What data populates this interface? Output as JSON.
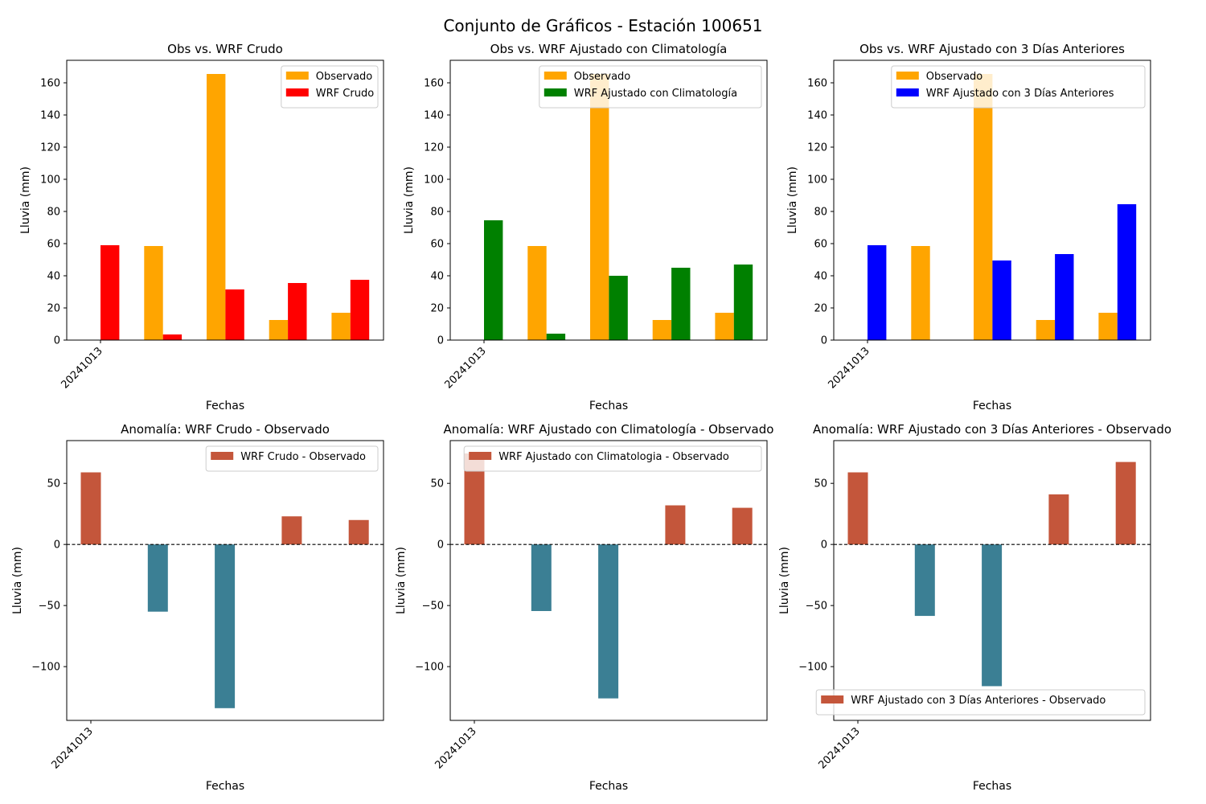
{
  "figure": {
    "title": "Conjunto de Gráficos - Estación 100651"
  },
  "colors": {
    "observed": "#FFA500",
    "wrf_raw": "#FF0000",
    "wrf_clim": "#008000",
    "wrf_3days": "#0000FF",
    "anomaly_positive": "#C4563B",
    "anomaly_negative": "#3B7F94"
  },
  "chart_data": [
    {
      "id": "obs-vs-wrf-crudo",
      "type": "bar",
      "title": "Obs vs. WRF Crudo",
      "xlabel": "Fechas",
      "ylabel": "Lluvia (mm)",
      "x_ticks": [
        "20241013"
      ],
      "categories": [
        "",
        "",
        "",
        "",
        ""
      ],
      "ylim": [
        0,
        174
      ],
      "yticks": [
        0,
        20,
        40,
        60,
        80,
        100,
        120,
        140,
        160
      ],
      "legend_position": "top-right",
      "series": [
        {
          "name": "Observado",
          "color_key": "observed",
          "values": [
            0,
            58.5,
            165.5,
            12.5,
            17
          ]
        },
        {
          "name": "WRF Crudo",
          "color_key": "wrf_raw",
          "values": [
            59,
            3.5,
            31.5,
            35.5,
            37.5
          ]
        }
      ]
    },
    {
      "id": "obs-vs-wrf-clim",
      "type": "bar",
      "title": "Obs vs. WRF Ajustado con Climatología",
      "xlabel": "Fechas",
      "ylabel": "Lluvia (mm)",
      "x_ticks": [
        "20241013"
      ],
      "categories": [
        "",
        "",
        "",
        "",
        ""
      ],
      "ylim": [
        0,
        174
      ],
      "yticks": [
        0,
        20,
        40,
        60,
        80,
        100,
        120,
        140,
        160
      ],
      "legend_position": "top-right",
      "series": [
        {
          "name": "Observado",
          "color_key": "observed",
          "values": [
            0,
            58.5,
            165.5,
            12.5,
            17
          ]
        },
        {
          "name": "WRF Ajustado con Climatología",
          "color_key": "wrf_clim",
          "values": [
            74.5,
            4,
            40,
            45,
            47
          ]
        }
      ]
    },
    {
      "id": "obs-vs-wrf-3dias",
      "type": "bar",
      "title": "Obs vs. WRF Ajustado con 3 Días Anteriores",
      "xlabel": "Fechas",
      "ylabel": "Lluvia (mm)",
      "x_ticks": [
        "20241013"
      ],
      "categories": [
        "",
        "",
        "",
        "",
        ""
      ],
      "ylim": [
        0,
        174
      ],
      "yticks": [
        0,
        20,
        40,
        60,
        80,
        100,
        120,
        140,
        160
      ],
      "legend_position": "top-right",
      "series": [
        {
          "name": "Observado",
          "color_key": "observed",
          "values": [
            0,
            58.5,
            165.5,
            12.5,
            17
          ]
        },
        {
          "name": "WRF Ajustado con 3 Días Anteriores",
          "color_key": "wrf_3days",
          "values": [
            59,
            0,
            49.5,
            53.5,
            84.5
          ]
        }
      ]
    },
    {
      "id": "anomalia-wrf-crudo",
      "type": "bar",
      "title": "Anomalía: WRF Crudo - Observado",
      "xlabel": "Fechas",
      "ylabel": "Lluvia (mm)",
      "x_ticks": [
        "20241013"
      ],
      "categories": [
        "",
        "",
        "",
        "",
        ""
      ],
      "ylim": [
        -144,
        85
      ],
      "yticks": [
        -100,
        -50,
        0,
        50
      ],
      "zero_line": true,
      "legend_position": "top-right",
      "series": [
        {
          "name": "WRF Crudo - Observado",
          "values": [
            59,
            -55,
            -134,
            23,
            20
          ]
        }
      ]
    },
    {
      "id": "anomalia-wrf-clim",
      "type": "bar",
      "title": "Anomalía: WRF Ajustado con Climatología - Observado",
      "xlabel": "Fechas",
      "ylabel": "Lluvia (mm)",
      "x_ticks": [
        "20241013"
      ],
      "categories": [
        "",
        "",
        "",
        "",
        ""
      ],
      "ylim": [
        -144,
        85
      ],
      "yticks": [
        -100,
        -50,
        0,
        50
      ],
      "zero_line": true,
      "legend_position": "top-right",
      "series": [
        {
          "name": "WRF Ajustado con Climatologia - Observado",
          "values": [
            74.5,
            -54.5,
            -126,
            32,
            30
          ]
        }
      ]
    },
    {
      "id": "anomalia-wrf-3dias",
      "type": "bar",
      "title": "Anomalía: WRF Ajustado con 3 Días Anteriores - Observado",
      "xlabel": "Fechas",
      "ylabel": "Lluvia (mm)",
      "x_ticks": [
        "20241013"
      ],
      "categories": [
        "",
        "",
        "",
        "",
        ""
      ],
      "ylim": [
        -144,
        85
      ],
      "yticks": [
        -100,
        -50,
        0,
        50
      ],
      "zero_line": true,
      "legend_position": "bottom-right",
      "series": [
        {
          "name": "WRF Ajustado con 3 Días Anteriores - Observado",
          "values": [
            59,
            -58.5,
            -116,
            41,
            67.5
          ]
        }
      ]
    }
  ]
}
